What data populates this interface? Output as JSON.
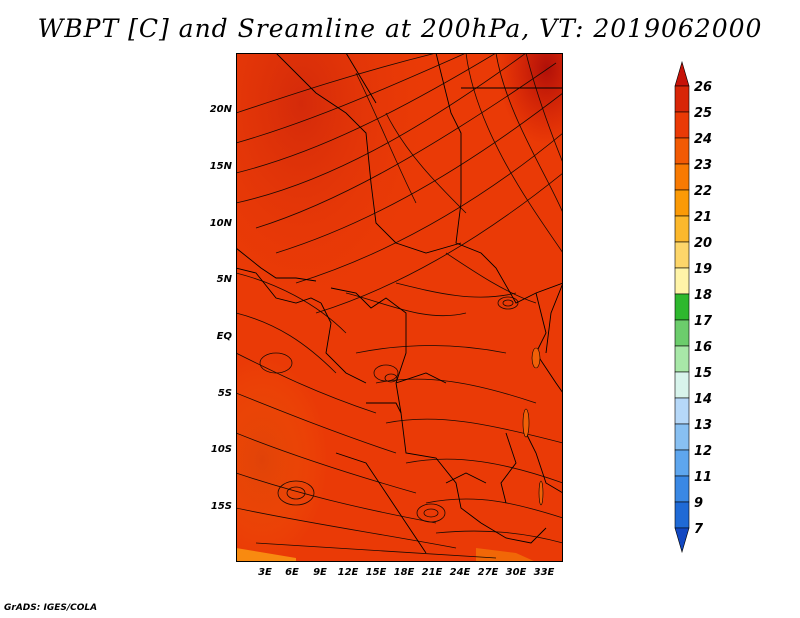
{
  "title": "WBPT [C] and Sreamline at 200hPa, VT: 2019062000",
  "credit": "GrADS: IGES/COLA",
  "map": {
    "lat_ticks": [
      "20N",
      "15N",
      "10N",
      "5N",
      "EQ",
      "5S",
      "10S",
      "15S"
    ],
    "lon_ticks": [
      "3E",
      "6E",
      "9E",
      "12E",
      "15E",
      "18E",
      "21E",
      "24E",
      "27E",
      "30E",
      "33E"
    ]
  },
  "colorbar": {
    "labels": [
      "26",
      "25",
      "24",
      "23",
      "22",
      "21",
      "20",
      "19",
      "18",
      "17",
      "16",
      "15",
      "14",
      "13",
      "12",
      "11",
      "9",
      "7"
    ],
    "colors": [
      "#c61208",
      "#d82608",
      "#ea3a06",
      "#f25a04",
      "#f87a02",
      "#fb9a06",
      "#fcb82c",
      "#fdd66a",
      "#fff4a8",
      "#2eb82e",
      "#6ccd6c",
      "#a8e8a8",
      "#d8f4ec",
      "#b6d8f8",
      "#88c0f2",
      "#5ea6ee",
      "#3a88e4",
      "#1f6ad6",
      "#1248c2"
    ]
  }
}
